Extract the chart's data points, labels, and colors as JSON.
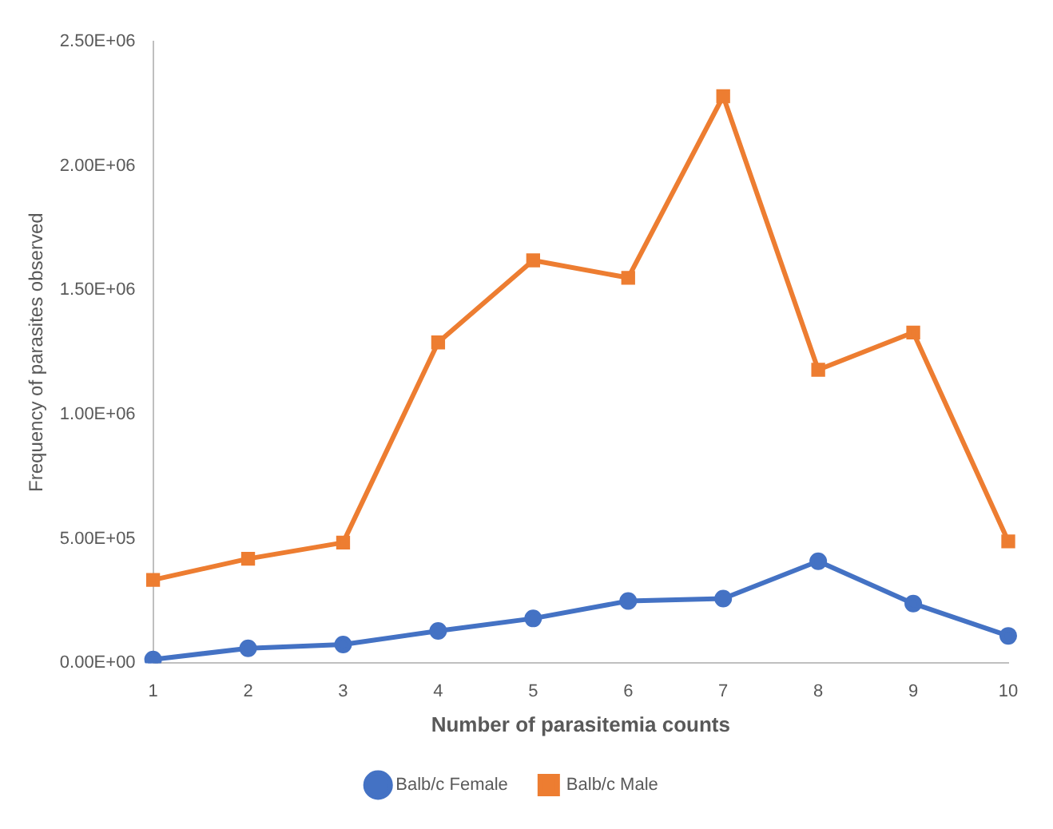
{
  "chart_data": {
    "type": "line",
    "xlabel": "Number of parasitemia counts",
    "ylabel": "Frequency of parasites observed",
    "categories": [
      "1",
      "2",
      "3",
      "4",
      "5",
      "6",
      "7",
      "8",
      "9",
      "10"
    ],
    "series": [
      {
        "name": "Balb/c Female",
        "color": "#4472c4",
        "marker": "circle",
        "values": [
          15000,
          60000,
          75000,
          130000,
          180000,
          250000,
          260000,
          410000,
          240000,
          110000
        ]
      },
      {
        "name": "Balb/c Male",
        "color": "#ed7d31",
        "marker": "square",
        "values": [
          335000,
          420000,
          485000,
          1290000,
          1620000,
          1550000,
          2280000,
          1180000,
          1330000,
          490000
        ]
      }
    ],
    "ylim": [
      0,
      2500000
    ],
    "yticks": [
      {
        "value": 0,
        "label": "0.00E+00"
      },
      {
        "value": 500000,
        "label": "5.00E+05"
      },
      {
        "value": 1000000,
        "label": "1.00E+06"
      },
      {
        "value": 1500000,
        "label": "1.50E+06"
      },
      {
        "value": 2000000,
        "label": "2.00E+06"
      },
      {
        "value": 2500000,
        "label": "2.50E+06"
      }
    ],
    "grid": false,
    "legend": "bottom"
  }
}
